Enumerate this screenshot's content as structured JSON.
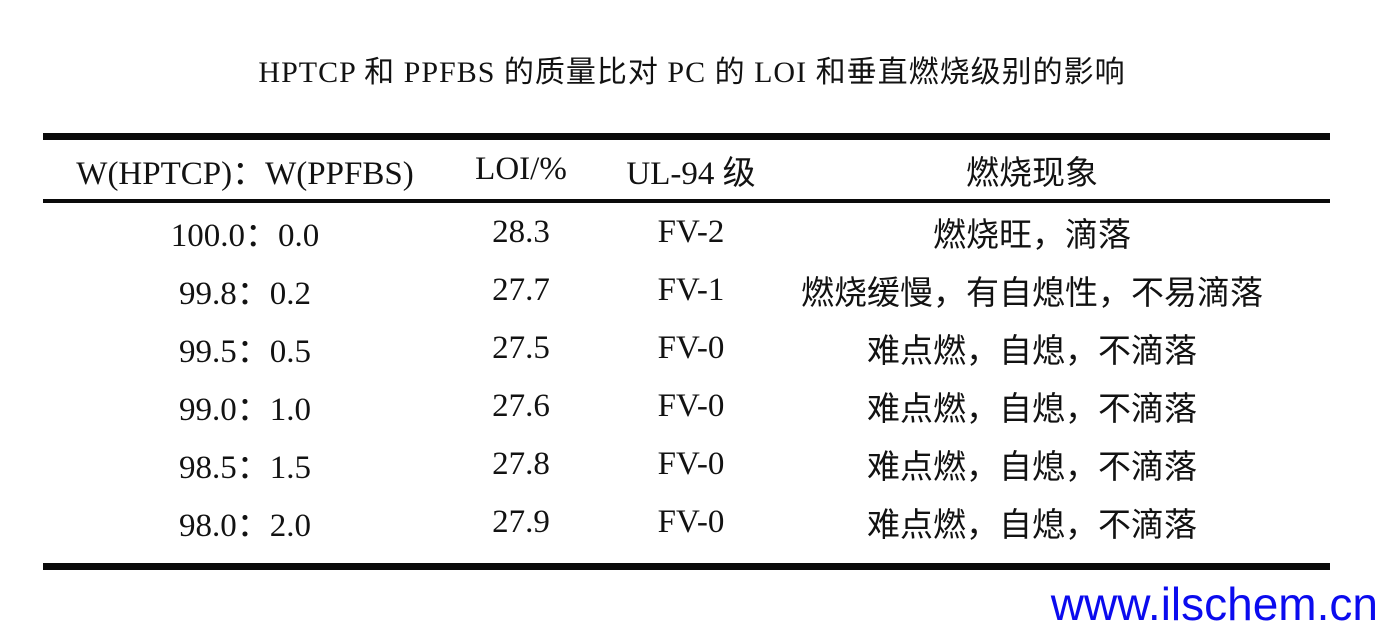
{
  "page": {
    "title": "HPTCP 和 PPFBS 的质量比对 PC 的 LOI 和垂直燃烧级别的影响",
    "watermark": "www.ilschem.cn",
    "colors": {
      "background": "#ffffff",
      "text": "#121212",
      "rule": "#0a0a0a",
      "watermark_blue": "#0b0bee"
    }
  },
  "table": {
    "columns": [
      "W(HPTCP)：W(PPFBS)",
      "LOI/%",
      "UL-94 级",
      "燃烧现象"
    ],
    "rows": [
      [
        "100.0：0.0",
        "28.3",
        "FV-2",
        "燃烧旺，滴落"
      ],
      [
        "99.8：0.2",
        "27.7",
        "FV-1",
        "燃烧缓慢，有自熄性，不易滴落"
      ],
      [
        "99.5：0.5",
        "27.5",
        "FV-0",
        "难点燃，自熄，不滴落"
      ],
      [
        "99.0：1.0",
        "27.6",
        "FV-0",
        "难点燃，自熄，不滴落"
      ],
      [
        "98.5：1.5",
        "27.8",
        "FV-0",
        "难点燃，自熄，不滴落"
      ],
      [
        "98.0：2.0",
        "27.9",
        "FV-0",
        "难点燃，自熄，不滴落"
      ]
    ]
  }
}
